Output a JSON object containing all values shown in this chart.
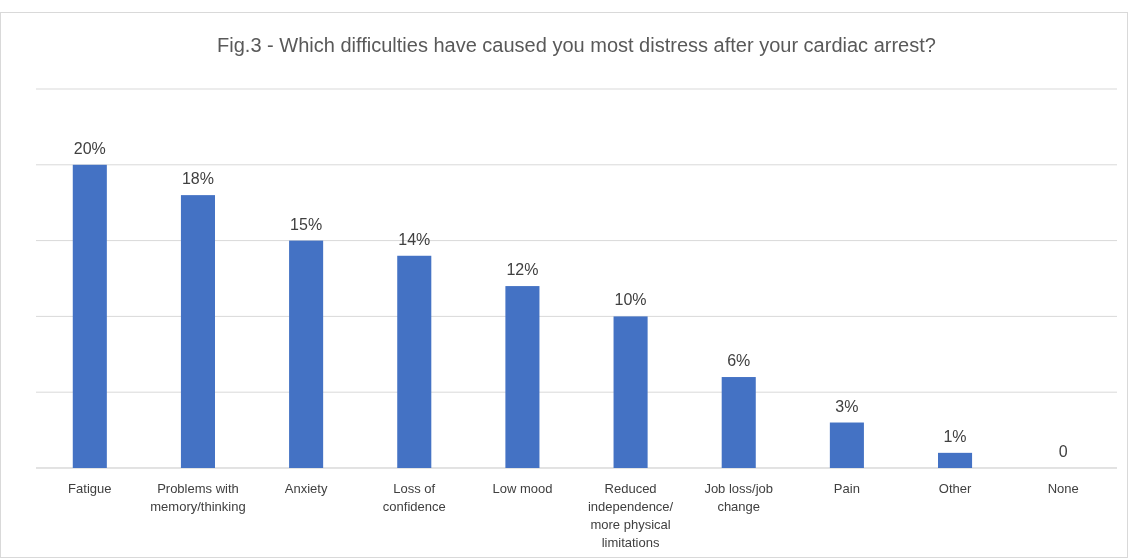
{
  "chart_data": {
    "type": "bar",
    "title": "Fig.3 - Which difficulties have caused you most distress after your cardiac arrest?",
    "categories": [
      "Fatigue",
      "Problems with memory/thinking",
      "Anxiety",
      "Loss of confidence",
      "Low mood",
      "Reduced independence/ more physical limitations",
      "Job loss/job change",
      "Pain",
      "Other",
      "None"
    ],
    "values": [
      20,
      18,
      15,
      14,
      12,
      10,
      6,
      3,
      1,
      0
    ],
    "value_labels": [
      "20%",
      "18%",
      "15%",
      "14%",
      "12%",
      "10%",
      "6%",
      "3%",
      "1%",
      "0"
    ],
    "color": "#4472c4",
    "ylim": [
      0,
      25
    ],
    "yticks": [
      {
        "value": 0,
        "label": null
      },
      {
        "value": 5,
        "label": null
      },
      {
        "value": 10,
        "label": null
      },
      {
        "value": 15,
        "label": null
      },
      {
        "value": 20,
        "label": null
      },
      {
        "value": 25,
        "label": null
      }
    ],
    "grid": "y",
    "tick_labels": "x"
  }
}
